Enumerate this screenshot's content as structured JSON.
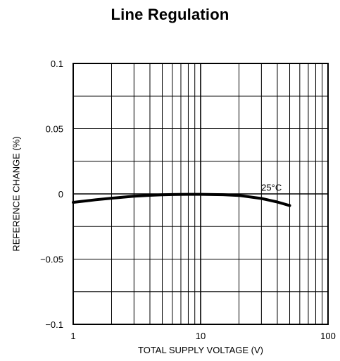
{
  "chart_data": {
    "type": "line",
    "title": "Line Regulation",
    "xlabel": "TOTAL SUPPLY VOLTAGE (V)",
    "ylabel": "REFERENCE CHANGE (%)",
    "x_scale": "log",
    "xlim": [
      1,
      100
    ],
    "ylim": [
      -0.1,
      0.1
    ],
    "x_ticks": [
      {
        "value": 1,
        "label": "1"
      },
      {
        "value": 10,
        "label": "10"
      },
      {
        "value": 100,
        "label": "100"
      }
    ],
    "y_ticks": [
      {
        "value": 0.1,
        "label": "0.1"
      },
      {
        "value": 0.05,
        "label": "0.05"
      },
      {
        "value": 0,
        "label": "0"
      },
      {
        "value": -0.05,
        "label": "−0.05"
      },
      {
        "value": -0.1,
        "label": "−0.1"
      }
    ],
    "grid": true,
    "series": [
      {
        "name": "25°C",
        "x": [
          1,
          1.5,
          2,
          3,
          4,
          5,
          6,
          8,
          10,
          15,
          20,
          30,
          40,
          50
        ],
        "y": [
          -0.0065,
          -0.0045,
          -0.0033,
          -0.0018,
          -0.0011,
          -0.0007,
          -0.0005,
          -0.0003,
          -0.0003,
          -0.0006,
          -0.0012,
          -0.0035,
          -0.0062,
          -0.009
        ]
      }
    ],
    "annotations": [
      {
        "text": "25°C",
        "x": 36,
        "y": 0.0025
      }
    ]
  }
}
